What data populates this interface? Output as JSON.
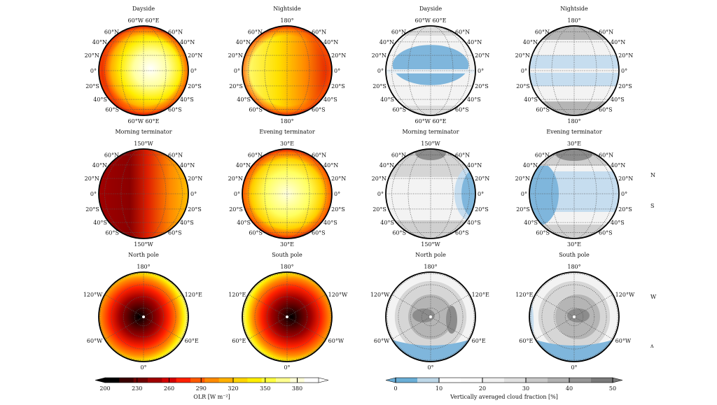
{
  "chart_data": {
    "type": "heatmap",
    "panels": [
      {
        "title": "Dayside",
        "kind": "globe",
        "field": "olr",
        "style": "day",
        "top": "60°W 60°E",
        "bottom": "60°W 60°E"
      },
      {
        "title": "Nightside",
        "kind": "globe",
        "field": "olr",
        "style": "night",
        "top": "180°",
        "bottom": "180°"
      },
      {
        "title": "Dayside",
        "kind": "globe",
        "field": "cloud",
        "style": "day",
        "top": "60°W 60°E",
        "bottom": "60°W 60°E"
      },
      {
        "title": "Nightside",
        "kind": "globe",
        "field": "cloud",
        "style": "night",
        "top": "180°",
        "bottom": "180°"
      },
      {
        "title": "Morning terminator",
        "kind": "globe",
        "field": "olr",
        "style": "morning",
        "top": "150°W",
        "bottom": "150°W"
      },
      {
        "title": "Evening terminator",
        "kind": "globe",
        "field": "olr",
        "style": "evening",
        "top": "30°E",
        "bottom": "30°E"
      },
      {
        "title": "Morning terminator",
        "kind": "globe",
        "field": "cloud",
        "style": "morning",
        "top": "150°W",
        "bottom": "150°W"
      },
      {
        "title": "Evening terminator",
        "kind": "globe",
        "field": "cloud",
        "style": "evening",
        "top": "30°E",
        "bottom": "30°E"
      },
      {
        "title": "North pole",
        "kind": "pole",
        "field": "olr",
        "style": "north",
        "top": "180°",
        "bottom": "0°",
        "upper_left": "120°W",
        "upper_right": "120°E",
        "lower_left": "60°W",
        "lower_right": "60°E"
      },
      {
        "title": "South pole",
        "kind": "pole",
        "field": "olr",
        "style": "south",
        "top": "180°",
        "bottom": "0°",
        "upper_left": "120°E",
        "upper_right": "120°W",
        "lower_left": "60°E",
        "lower_right": "60°W"
      },
      {
        "title": "North pole",
        "kind": "pole",
        "field": "cloud",
        "style": "north",
        "top": "180°",
        "bottom": "0°",
        "upper_left": "120°W",
        "upper_right": "120°E",
        "lower_left": "60°W",
        "lower_right": "60°E"
      },
      {
        "title": "South pole",
        "kind": "pole",
        "field": "cloud",
        "style": "south",
        "top": "180°",
        "bottom": "0°",
        "upper_left": "120°E",
        "upper_right": "120°W",
        "lower_left": "60°E",
        "lower_right": "60°W"
      }
    ],
    "latitude_labels": [
      "60°N",
      "40°N",
      "20°N",
      "0°",
      "20°S",
      "40°S",
      "60°S"
    ],
    "colorbars": [
      {
        "field": "olr",
        "label": "OLR [W m⁻²]",
        "ticks": [
          200,
          230,
          260,
          290,
          320,
          350,
          380
        ],
        "range": [
          200,
          400
        ],
        "colors": [
          "#000000",
          "#3a0000",
          "#6e0000",
          "#a00000",
          "#d40000",
          "#ff2000",
          "#ff5a00",
          "#ff8a00",
          "#ffb000",
          "#ffd400",
          "#ffee00",
          "#ffff40",
          "#ffff90",
          "#ffffd8",
          "#ffffff"
        ]
      },
      {
        "field": "cloud",
        "label": "Vertically averaged cloud fraction [%]",
        "ticks": [
          0,
          10,
          20,
          30,
          40,
          50
        ],
        "range": [
          0,
          50
        ],
        "colors": [
          "#6aaed6",
          "#bdd7e7",
          "#ffffff",
          "#fafafa",
          "#f0f0f0",
          "#e0e0e0",
          "#c8c8c8",
          "#b0b0b0",
          "#969696",
          "#7a7a7a"
        ]
      }
    ],
    "side_fragments": [
      "N",
      "S",
      "W",
      "ʌ"
    ]
  }
}
